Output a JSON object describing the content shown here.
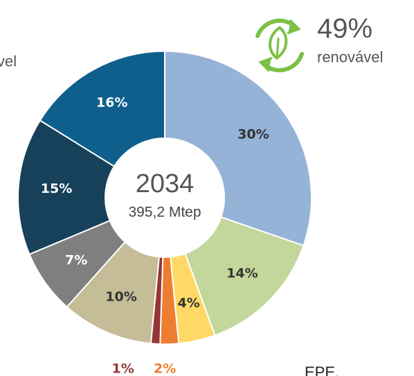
{
  "chart_data": {
    "type": "donut",
    "center_title": "2034",
    "center_subtitle": "395,2 Mtep",
    "categories": [
      null,
      null,
      null,
      null,
      null,
      null,
      null,
      null,
      null
    ],
    "values": [
      30,
      14,
      4,
      2,
      1,
      10,
      7,
      15,
      16
    ],
    "value_labels": [
      "30%",
      "14%",
      "4%",
      "2%",
      "1%",
      "10%",
      "7%",
      "15%",
      "16%"
    ],
    "colors": [
      "#95b3d7",
      "#c3d69b",
      "#ffd966",
      "#ed7d31",
      "#953735",
      "#c4bd97",
      "#7f7f7f",
      "#17405a",
      "#0f5f8c"
    ],
    "badge_value": "49%",
    "badge_label": "renovável",
    "left_fragment": "vel",
    "source_fragment": "EPE."
  }
}
